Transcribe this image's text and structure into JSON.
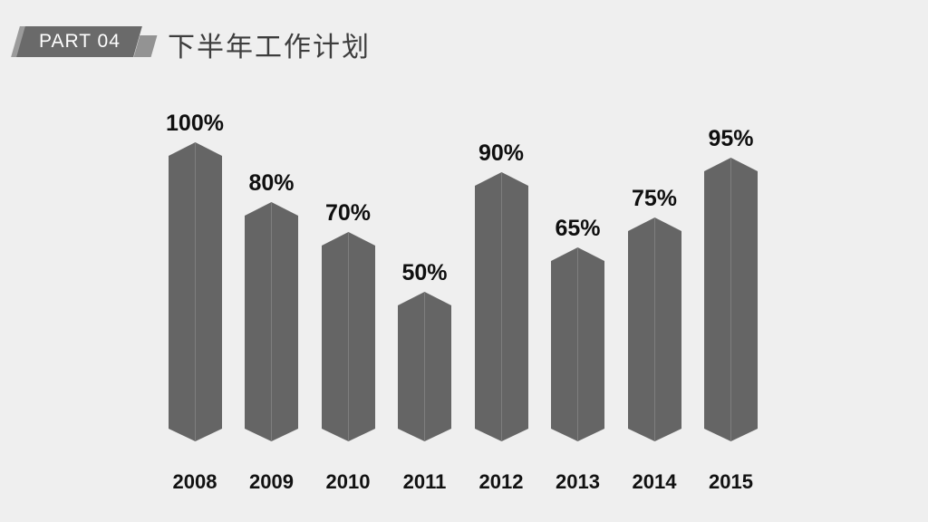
{
  "header": {
    "badge_label": "PART 04",
    "title": "下半年工作计划"
  },
  "chart_data": {
    "type": "bar",
    "title": "",
    "xlabel": "",
    "ylabel": "",
    "categories": [
      "2008",
      "2009",
      "2010",
      "2011",
      "2012",
      "2013",
      "2014",
      "2015"
    ],
    "values": [
      100,
      80,
      70,
      50,
      90,
      65,
      75,
      95
    ],
    "labels": [
      "100%",
      "80%",
      "70%",
      "50%",
      "90%",
      "65%",
      "75%",
      "95%"
    ],
    "unit": "%",
    "ylim": [
      0,
      100
    ],
    "grid": false,
    "legend": false,
    "bar_style": "3d-hexagonal-prism",
    "bar_color": "#656565",
    "bar_edge_color": "#7e7e7e",
    "value_label_color": "#0f0f0f",
    "category_label_color": "#111111"
  },
  "colors": {
    "background": "#efefef",
    "badge_fill": "#6a6a6a",
    "badge_back_fill": "#9b9b9b",
    "badge_accent_fill": "#939393",
    "badge_text": "#ffffff",
    "title_text": "#3d3d3d"
  }
}
